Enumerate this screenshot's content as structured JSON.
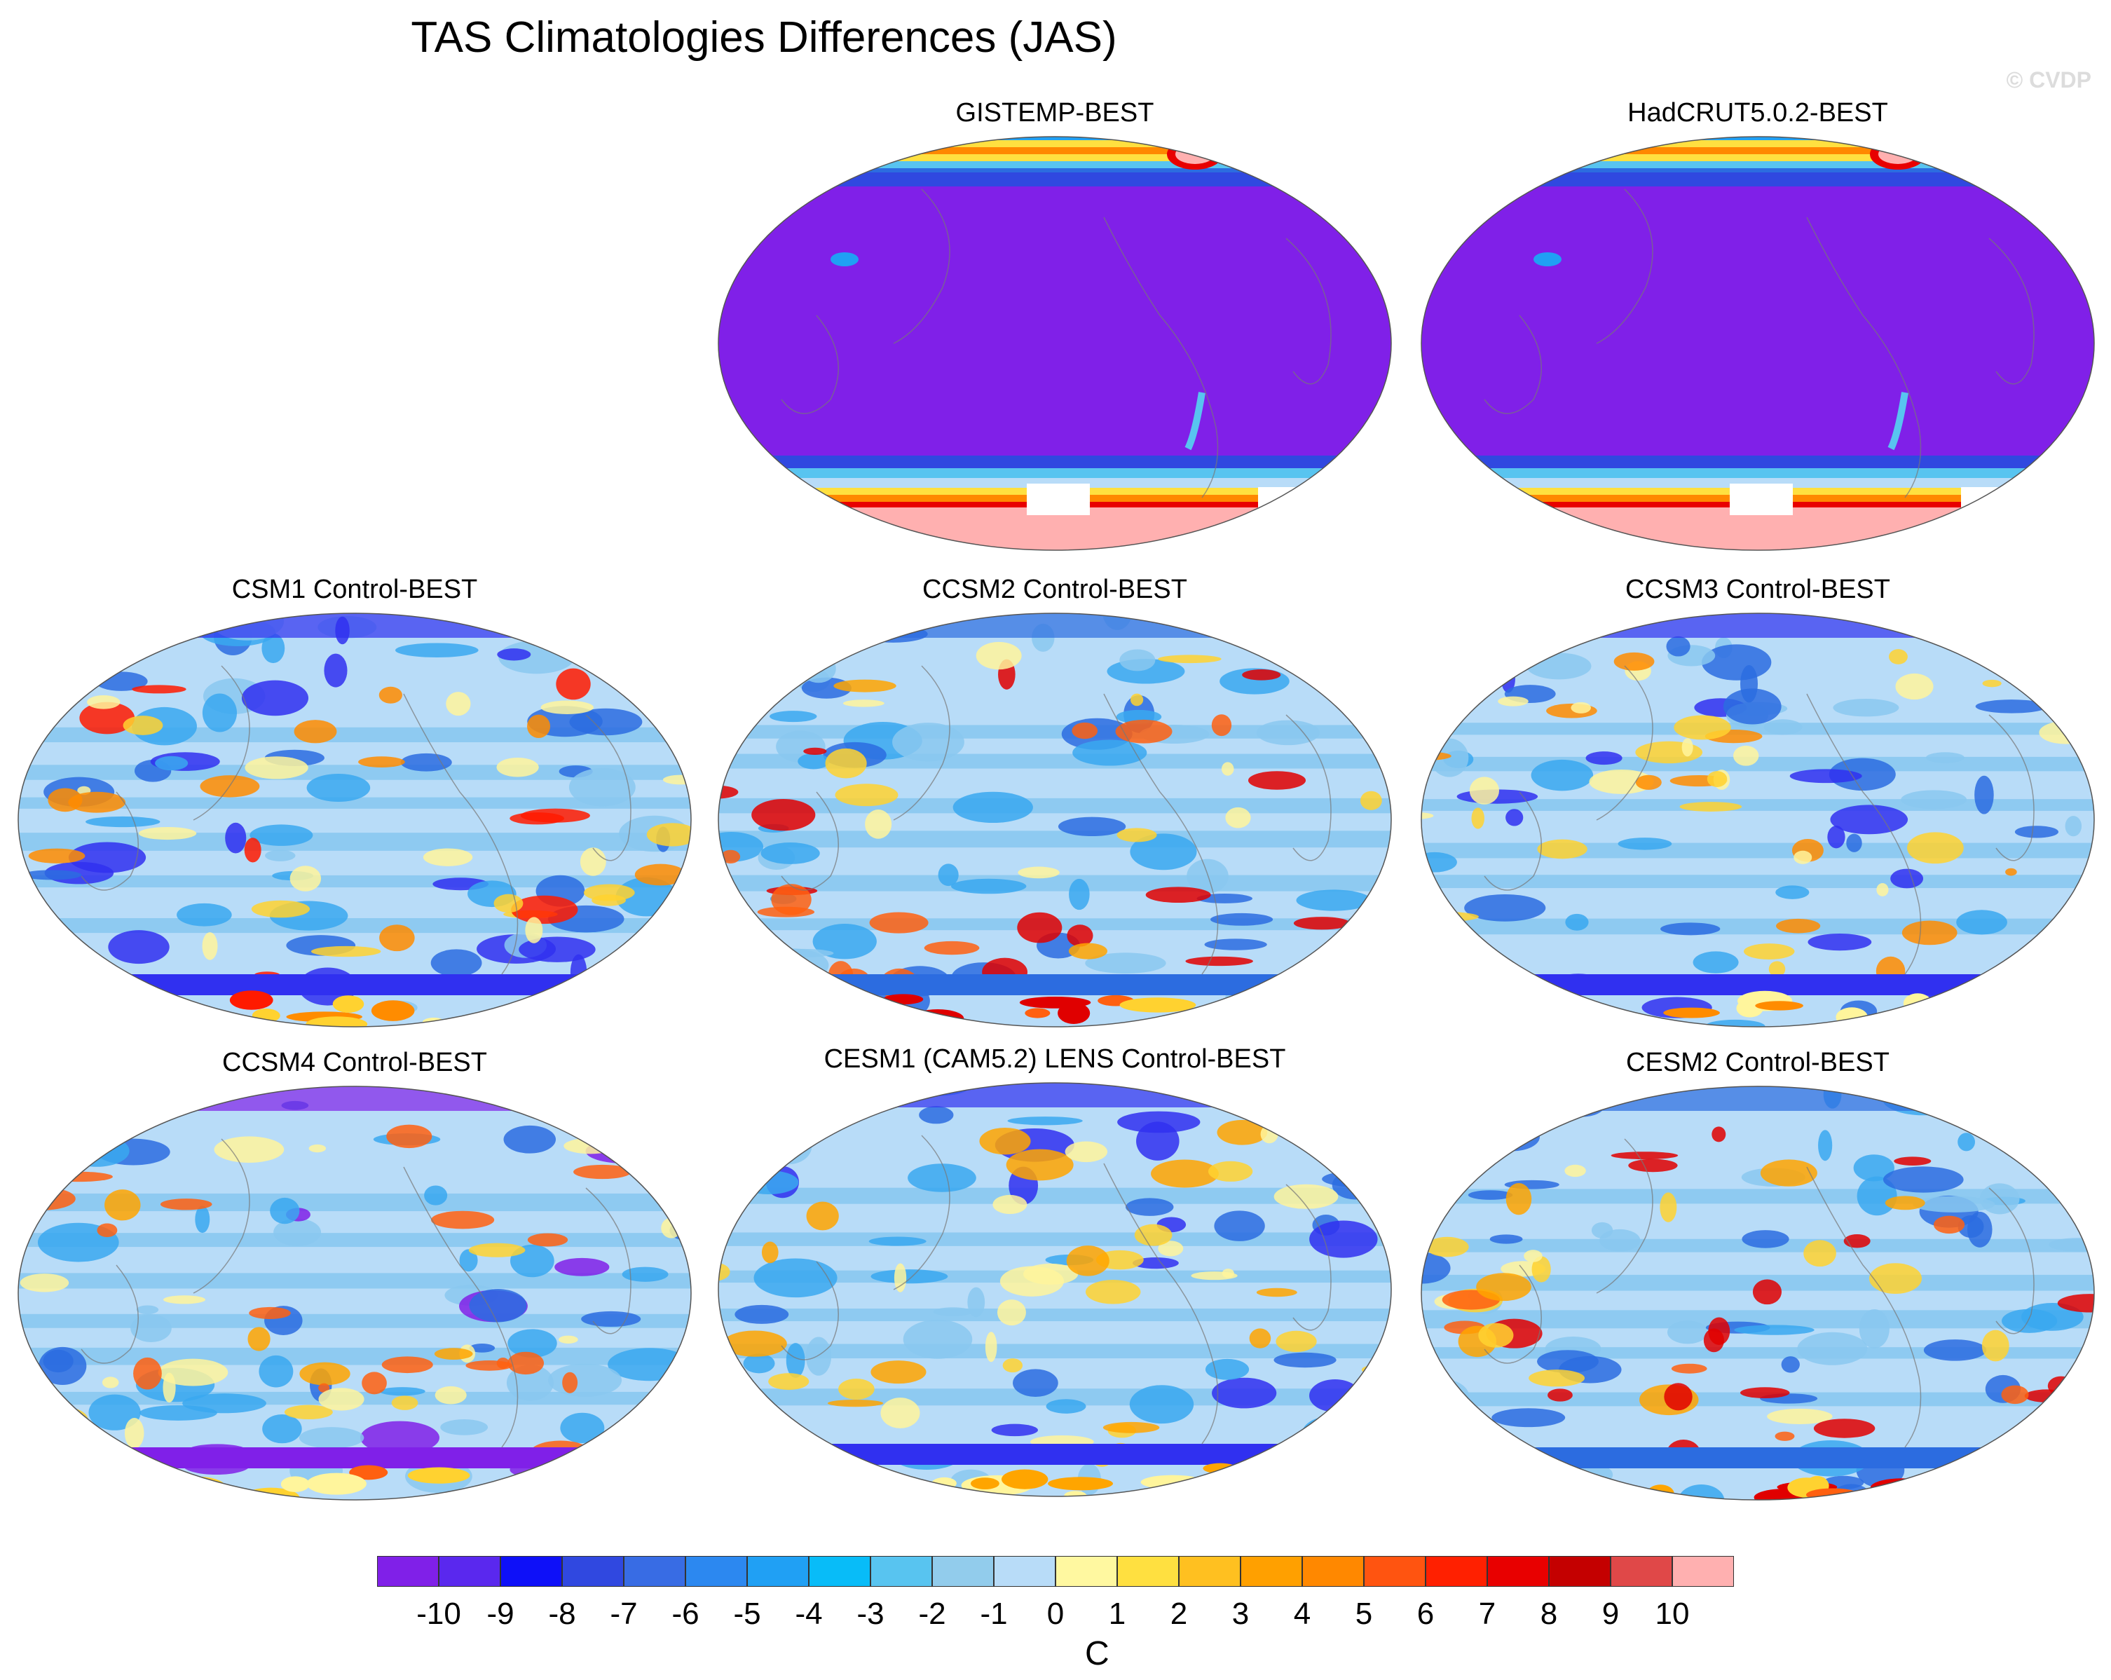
{
  "title": "TAS Climatologies Differences (JAS)",
  "watermark": "© CVDP",
  "map_projection": "Robinson-like global, Pacific-centered",
  "panels": [
    {
      "title": "GISTEMP-BEST",
      "type": "obs",
      "cool": [
        "#8020e8"
      ],
      "warm": [],
      "pole": "#ffb0b0"
    },
    {
      "title": "HadCRUT5.0.2-BEST",
      "type": "obs",
      "cool": [
        "#8020e8"
      ],
      "warm": [],
      "pole": "#ffb0b0"
    },
    {
      "title": "CSM1 Control-BEST",
      "type": "model",
      "base": "#b8dcf8",
      "cool": [
        "#8ac8f0",
        "#3aa8f0",
        "#2c6ce0",
        "#3030f0"
      ],
      "warm": [
        "#fff59c",
        "#ffd230",
        "#ff8c00",
        "#ff1a00"
      ]
    },
    {
      "title": "CCSM2 Control-BEST",
      "type": "model",
      "base": "#b8dcf8",
      "cool": [
        "#8ac8f0",
        "#3aa8f0",
        "#2c6ce0"
      ],
      "warm": [
        "#fff59c",
        "#ffd230",
        "#ffa500",
        "#ff6010",
        "#e00000"
      ]
    },
    {
      "title": "CCSM3 Control-BEST",
      "type": "model",
      "base": "#b8dcf8",
      "cool": [
        "#8ac8f0",
        "#3aa8f0",
        "#2c6ce0",
        "#3030f0"
      ],
      "warm": [
        "#fff59c",
        "#ffd230",
        "#ff8c00"
      ]
    },
    {
      "title": "CCSM4 Control-BEST",
      "type": "model",
      "base": "#b8dcf8",
      "cool": [
        "#8ac8f0",
        "#3aa8f0",
        "#2c6ce0",
        "#8020e8"
      ],
      "warm": [
        "#fff59c",
        "#ffd230",
        "#ffa500",
        "#ff6010"
      ]
    },
    {
      "title": "CESM1 (CAM5.2) LENS Control-BEST",
      "type": "model",
      "base": "#b8dcf8",
      "cool": [
        "#8ac8f0",
        "#3aa8f0",
        "#2c6ce0",
        "#3030f0"
      ],
      "warm": [
        "#fff59c",
        "#ffd230",
        "#ffa500"
      ]
    },
    {
      "title": "CESM2 Control-BEST",
      "type": "model",
      "base": "#b8dcf8",
      "cool": [
        "#8ac8f0",
        "#3aa8f0",
        "#2c6ce0"
      ],
      "warm": [
        "#fff59c",
        "#ffd230",
        "#ffa500",
        "#ff6010",
        "#e00000"
      ]
    }
  ],
  "colorbar": {
    "unit": "C",
    "labels": [
      "-10",
      "-9",
      "-8",
      "-7",
      "-6",
      "-5",
      "-4",
      "-3",
      "-2",
      "-1",
      "0",
      "1",
      "2",
      "3",
      "4",
      "5",
      "6",
      "7",
      "8",
      "9",
      "10"
    ],
    "colors": [
      "#8020e8",
      "#5a28ee",
      "#0e10f8",
      "#3048e0",
      "#386ce4",
      "#2c88f0",
      "#20a0f4",
      "#08bcf8",
      "#58c4f0",
      "#92ccec",
      "#b8dcf8",
      "#fff8a0",
      "#ffe040",
      "#ffc020",
      "#ffa000",
      "#ff8800",
      "#ff5410",
      "#ff2000",
      "#e80000",
      "#c40000",
      "#e04848",
      "#ffb0b0"
    ]
  }
}
